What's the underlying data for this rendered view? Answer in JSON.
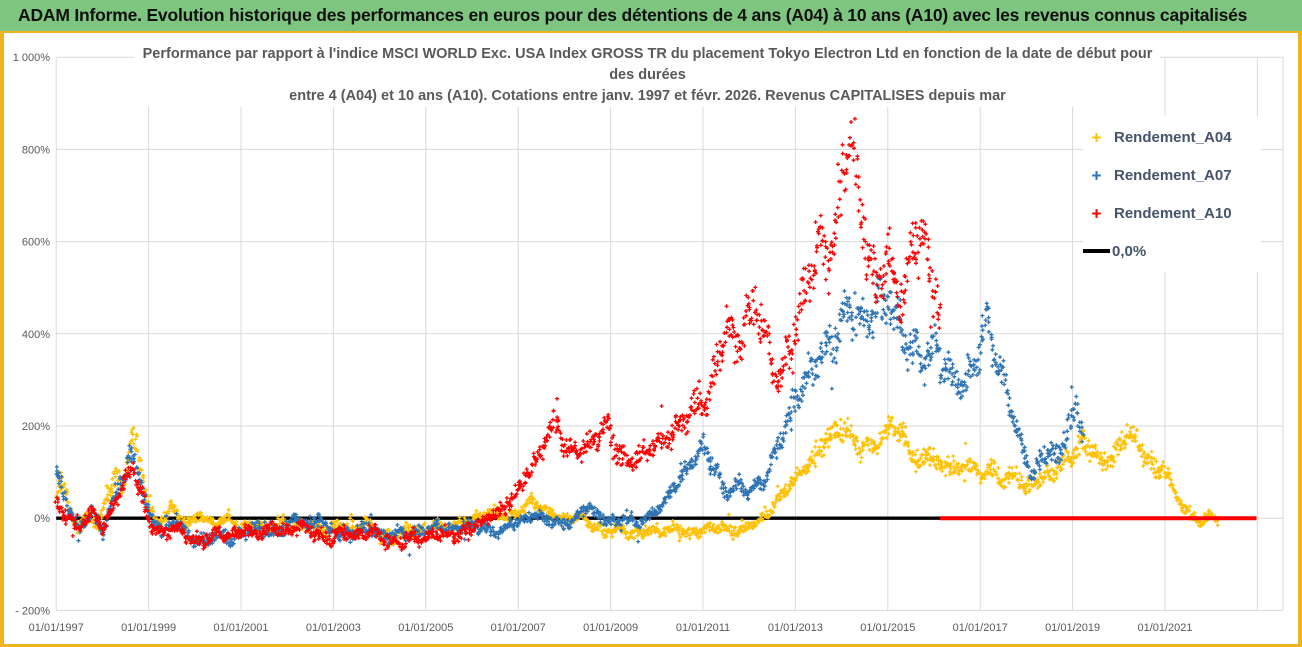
{
  "header": {
    "title": "ADAM Informe. Evolution historique des performances en euros pour des détentions de 4 ans (A04) à 10 ans (A10) avec les revenus connus capitalisés"
  },
  "chart": {
    "title_line1": "Performance par rapport à l'indice MSCI WORLD Exc. USA Index GROSS TR  du placement Tokyo Electron Ltd en fonction de la date de début pour",
    "title_line2": "des durées",
    "title_line3": "entre 4 (A04) et 10 ans (A10). Cotations entre janv. 1997 et févr. 2026. Revenus CAPITALISES depuis mar",
    "legend": [
      {
        "label": "Rendement_A04",
        "color": "#ffc103",
        "marker": "plus"
      },
      {
        "label": "Rendement_A07",
        "color": "#2e74b5",
        "marker": "plus"
      },
      {
        "label": "Rendement_A10",
        "color": "#fe0000",
        "marker": "plus"
      },
      {
        "label": "0,0%",
        "color": "#000000",
        "marker": "line"
      }
    ]
  },
  "chart_data": {
    "type": "scatter",
    "marker": "plus",
    "grid": true,
    "legend_position": "right",
    "title": "Performance par rapport à l'indice MSCI WORLD Exc. USA Index GROSS TR du placement Tokyo Electron Ltd en fonction de la date de début pour des durées entre 4 (A04) et 10 ans (A10). Cotations entre janv. 1997 et févr. 2026. Revenus CAPITALISES depuis mar",
    "x_axis": {
      "tick_labels": [
        "01/01/1997",
        "01/01/1999",
        "01/01/2001",
        "01/01/2003",
        "01/01/2005",
        "01/01/2007",
        "01/01/2009",
        "01/01/2011",
        "01/01/2013",
        "01/01/2015",
        "01/01/2017",
        "01/01/2019",
        "01/01/2021"
      ],
      "tick_years": [
        1997,
        1999,
        2001,
        2003,
        2005,
        2007,
        2009,
        2011,
        2013,
        2015,
        2017,
        2019,
        2021
      ],
      "range_years": [
        1997,
        2023
      ]
    },
    "y_axis": {
      "tick_labels": [
        "1 000%",
        "800%",
        "600%",
        "400%",
        "200%",
        "0%",
        "- 200%"
      ],
      "tick_values": [
        1000,
        800,
        600,
        400,
        200,
        0,
        -200
      ],
      "range": [
        -200,
        1000
      ],
      "unit": "%"
    },
    "zero_line": {
      "label": "0,0%",
      "color": "#000000",
      "black_to_year": 2016.13
    },
    "series": [
      {
        "name": "Rendement_A04",
        "color": "#ffc103",
        "points": [
          [
            1997.0,
            55
          ],
          [
            1997.1,
            85
          ],
          [
            1997.3,
            15
          ],
          [
            1997.5,
            -25
          ],
          [
            1997.7,
            10
          ],
          [
            1997.9,
            -20
          ],
          [
            1998.1,
            45
          ],
          [
            1998.3,
            105
          ],
          [
            1998.45,
            60
          ],
          [
            1998.65,
            195
          ],
          [
            1998.8,
            120
          ],
          [
            1999.0,
            30
          ],
          [
            1999.2,
            -10
          ],
          [
            1999.5,
            25
          ],
          [
            1999.8,
            -15
          ],
          [
            2000.1,
            10
          ],
          [
            2000.4,
            -15
          ],
          [
            2000.7,
            0
          ],
          [
            2001.0,
            -20
          ],
          [
            2001.3,
            -10
          ],
          [
            2001.6,
            -25
          ],
          [
            2001.9,
            -5
          ],
          [
            2002.2,
            -20
          ],
          [
            2002.5,
            -10
          ],
          [
            2002.8,
            -30
          ],
          [
            2003.1,
            -15
          ],
          [
            2003.4,
            -25
          ],
          [
            2003.7,
            -10
          ],
          [
            2004.0,
            -35
          ],
          [
            2004.3,
            -45
          ],
          [
            2004.6,
            -25
          ],
          [
            2004.9,
            -30
          ],
          [
            2005.2,
            -15
          ],
          [
            2005.5,
            -25
          ],
          [
            2005.8,
            -10
          ],
          [
            2006.1,
            0
          ],
          [
            2006.4,
            15
          ],
          [
            2006.7,
            5
          ],
          [
            2007.0,
            10
          ],
          [
            2007.3,
            40
          ],
          [
            2007.5,
            25
          ],
          [
            2007.8,
            5
          ],
          [
            2008.0,
            -5
          ],
          [
            2008.3,
            10
          ],
          [
            2008.6,
            -15
          ],
          [
            2008.9,
            -30
          ],
          [
            2009.2,
            -20
          ],
          [
            2009.5,
            -35
          ],
          [
            2009.8,
            -25
          ],
          [
            2010.1,
            -30
          ],
          [
            2010.4,
            -20
          ],
          [
            2010.7,
            -35
          ],
          [
            2011.0,
            -25
          ],
          [
            2011.3,
            -15
          ],
          [
            2011.6,
            -30
          ],
          [
            2011.9,
            -20
          ],
          [
            2012.2,
            -10
          ],
          [
            2012.5,
            20
          ],
          [
            2012.8,
            60
          ],
          [
            2013.1,
            100
          ],
          [
            2013.4,
            130
          ],
          [
            2013.7,
            170
          ],
          [
            2014.0,
            200
          ],
          [
            2014.3,
            165
          ],
          [
            2014.6,
            145
          ],
          [
            2014.9,
            175
          ],
          [
            2015.1,
            215
          ],
          [
            2015.3,
            180
          ],
          [
            2015.5,
            140
          ],
          [
            2015.7,
            120
          ],
          [
            2015.9,
            150
          ],
          [
            2016.1,
            110
          ],
          [
            2016.3,
            125
          ],
          [
            2016.5,
            100
          ],
          [
            2016.8,
            120
          ],
          [
            2017.0,
            95
          ],
          [
            2017.2,
            110
          ],
          [
            2017.5,
            80
          ],
          [
            2017.8,
            95
          ],
          [
            2018.0,
            60
          ],
          [
            2018.2,
            80
          ],
          [
            2018.5,
            95
          ],
          [
            2018.8,
            115
          ],
          [
            2019.0,
            140
          ],
          [
            2019.3,
            165
          ],
          [
            2019.6,
            120
          ],
          [
            2019.9,
            140
          ],
          [
            2020.2,
            185
          ],
          [
            2020.5,
            150
          ],
          [
            2020.8,
            100
          ],
          [
            2021.0,
            115
          ],
          [
            2021.2,
            60
          ],
          [
            2021.4,
            20
          ],
          [
            2021.6,
            5
          ],
          [
            2021.8,
            -15
          ],
          [
            2022.0,
            10
          ],
          [
            2022.2,
            -5
          ]
        ]
      },
      {
        "name": "Rendement_A07",
        "color": "#2e74b5",
        "points": [
          [
            1997.0,
            110
          ],
          [
            1997.2,
            40
          ],
          [
            1997.5,
            -30
          ],
          [
            1997.8,
            20
          ],
          [
            1998.0,
            -35
          ],
          [
            1998.2,
            30
          ],
          [
            1998.4,
            80
          ],
          [
            1998.65,
            140
          ],
          [
            1998.8,
            90
          ],
          [
            1999.0,
            10
          ],
          [
            1999.3,
            -30
          ],
          [
            1999.6,
            -10
          ],
          [
            1999.9,
            -40
          ],
          [
            2000.2,
            -50
          ],
          [
            2000.5,
            -35
          ],
          [
            2000.8,
            -45
          ],
          [
            2001.1,
            -30
          ],
          [
            2001.4,
            -20
          ],
          [
            2001.7,
            -35
          ],
          [
            2002.0,
            -15
          ],
          [
            2002.2,
            0
          ],
          [
            2002.5,
            -20
          ],
          [
            2002.7,
            5
          ],
          [
            2002.9,
            -25
          ],
          [
            2003.2,
            -40
          ],
          [
            2003.5,
            -30
          ],
          [
            2003.8,
            -20
          ],
          [
            2004.1,
            -40
          ],
          [
            2004.4,
            -30
          ],
          [
            2004.7,
            -35
          ],
          [
            2005.0,
            -25
          ],
          [
            2005.3,
            -15
          ],
          [
            2005.6,
            -25
          ],
          [
            2005.9,
            -15
          ],
          [
            2006.2,
            -20
          ],
          [
            2006.5,
            -30
          ],
          [
            2006.8,
            -15
          ],
          [
            2007.1,
            -5
          ],
          [
            2007.4,
            10
          ],
          [
            2007.7,
            -5
          ],
          [
            2008.0,
            -15
          ],
          [
            2008.3,
            5
          ],
          [
            2008.5,
            30
          ],
          [
            2008.7,
            10
          ],
          [
            2009.0,
            -10
          ],
          [
            2009.3,
            0
          ],
          [
            2009.6,
            -15
          ],
          [
            2009.9,
            10
          ],
          [
            2010.2,
            40
          ],
          [
            2010.5,
            90
          ],
          [
            2010.8,
            130
          ],
          [
            2011.0,
            155
          ],
          [
            2011.2,
            120
          ],
          [
            2011.5,
            55
          ],
          [
            2011.8,
            75
          ],
          [
            2012.0,
            60
          ],
          [
            2012.3,
            75
          ],
          [
            2012.6,
            150
          ],
          [
            2012.9,
            230
          ],
          [
            2013.2,
            300
          ],
          [
            2013.5,
            340
          ],
          [
            2013.8,
            380
          ],
          [
            2014.0,
            420
          ],
          [
            2014.3,
            460
          ],
          [
            2014.5,
            420
          ],
          [
            2014.8,
            460
          ],
          [
            2015.0,
            480
          ],
          [
            2015.2,
            430
          ],
          [
            2015.4,
            380
          ],
          [
            2015.6,
            360
          ],
          [
            2015.8,
            340
          ],
          [
            2016.0,
            380
          ],
          [
            2016.2,
            330
          ],
          [
            2016.5,
            290
          ],
          [
            2016.8,
            310
          ],
          [
            2017.0,
            380
          ],
          [
            2017.15,
            430
          ],
          [
            2017.3,
            360
          ],
          [
            2017.5,
            300
          ],
          [
            2017.7,
            230
          ],
          [
            2017.9,
            160
          ],
          [
            2018.1,
            90
          ],
          [
            2018.3,
            120
          ],
          [
            2018.5,
            160
          ],
          [
            2018.7,
            130
          ],
          [
            2018.9,
            200
          ],
          [
            2019.0,
            250
          ],
          [
            2019.1,
            215
          ],
          [
            2019.25,
            170
          ]
        ]
      },
      {
        "name": "Rendement_A10",
        "color": "#fe0000",
        "flat_zero_to_year": 2022.98,
        "points": [
          [
            1997.0,
            30
          ],
          [
            1997.2,
            0
          ],
          [
            1997.5,
            -20
          ],
          [
            1997.8,
            15
          ],
          [
            1998.0,
            -25
          ],
          [
            1998.3,
            40
          ],
          [
            1998.5,
            80
          ],
          [
            1998.65,
            110
          ],
          [
            1998.8,
            70
          ],
          [
            1999.0,
            -10
          ],
          [
            1999.3,
            -35
          ],
          [
            1999.6,
            -20
          ],
          [
            1999.9,
            -45
          ],
          [
            2000.2,
            -50
          ],
          [
            2000.5,
            -30
          ],
          [
            2000.8,
            -40
          ],
          [
            2001.1,
            -25
          ],
          [
            2001.4,
            -35
          ],
          [
            2001.7,
            -20
          ],
          [
            2002.0,
            -30
          ],
          [
            2002.3,
            -15
          ],
          [
            2002.6,
            -35
          ],
          [
            2002.9,
            -45
          ],
          [
            2003.2,
            -30
          ],
          [
            2003.5,
            -40
          ],
          [
            2003.8,
            -25
          ],
          [
            2004.1,
            -45
          ],
          [
            2004.4,
            -55
          ],
          [
            2004.7,
            -40
          ],
          [
            2005.0,
            -45
          ],
          [
            2005.3,
            -30
          ],
          [
            2005.6,
            -40
          ],
          [
            2005.9,
            -25
          ],
          [
            2006.2,
            -10
          ],
          [
            2006.5,
            10
          ],
          [
            2006.8,
            30
          ],
          [
            2007.0,
            60
          ],
          [
            2007.2,
            100
          ],
          [
            2007.4,
            130
          ],
          [
            2007.6,
            170
          ],
          [
            2007.85,
            215
          ],
          [
            2008.0,
            160
          ],
          [
            2008.2,
            140
          ],
          [
            2008.5,
            155
          ],
          [
            2008.7,
            180
          ],
          [
            2008.9,
            205
          ],
          [
            2009.1,
            150
          ],
          [
            2009.4,
            120
          ],
          [
            2009.7,
            140
          ],
          [
            2010.0,
            160
          ],
          [
            2010.3,
            180
          ],
          [
            2010.6,
            220
          ],
          [
            2010.9,
            260
          ],
          [
            2011.1,
            245
          ],
          [
            2011.3,
            340
          ],
          [
            2011.5,
            420
          ],
          [
            2011.7,
            370
          ],
          [
            2011.9,
            420
          ],
          [
            2012.1,
            460
          ],
          [
            2012.3,
            420
          ],
          [
            2012.5,
            330
          ],
          [
            2012.7,
            300
          ],
          [
            2012.9,
            380
          ],
          [
            2013.1,
            450
          ],
          [
            2013.3,
            530
          ],
          [
            2013.5,
            600
          ],
          [
            2013.7,
            560
          ],
          [
            2013.9,
            650
          ],
          [
            2014.05,
            760
          ],
          [
            2014.17,
            850
          ],
          [
            2014.3,
            730
          ],
          [
            2014.45,
            650
          ],
          [
            2014.6,
            560
          ],
          [
            2014.75,
            500
          ],
          [
            2014.9,
            540
          ],
          [
            2015.0,
            580
          ],
          [
            2015.1,
            520
          ],
          [
            2015.3,
            480
          ],
          [
            2015.5,
            560
          ],
          [
            2015.7,
            620
          ],
          [
            2015.85,
            560
          ],
          [
            2016.0,
            500
          ],
          [
            2016.13,
            470
          ]
        ]
      }
    ]
  }
}
